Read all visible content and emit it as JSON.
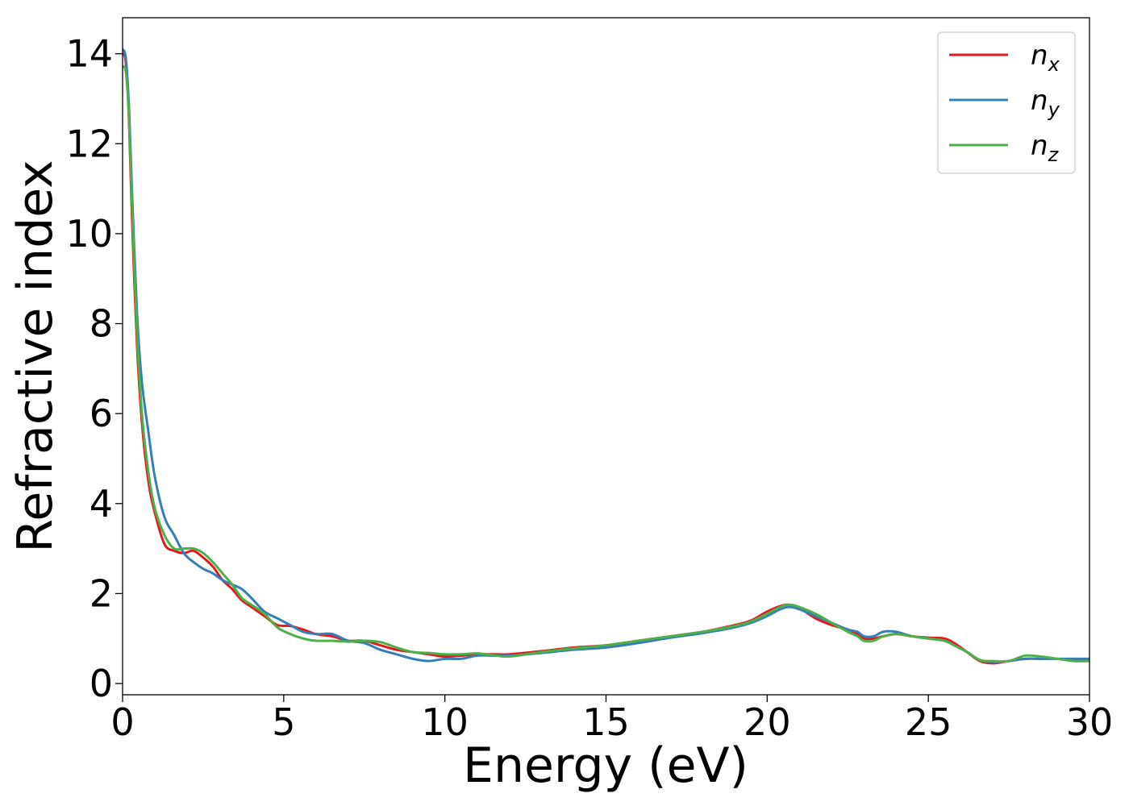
{
  "chart_data": {
    "type": "line",
    "title": "",
    "xlabel": "Energy (eV)",
    "ylabel": "Refractive index",
    "xlim": [
      0,
      30
    ],
    "ylim": [
      -0.25,
      14.8
    ],
    "xticks": [
      0,
      5,
      10,
      15,
      20,
      25,
      30
    ],
    "yticks": [
      0,
      2,
      4,
      6,
      8,
      10,
      12,
      14
    ],
    "grid": false,
    "legend_position": "top-right",
    "series": [
      {
        "name": "n",
        "subscript": "x",
        "color": "#e41a1c",
        "x": [
          0,
          0.1,
          0.2,
          0.3,
          0.45,
          0.6,
          0.8,
          1.0,
          1.3,
          1.6,
          1.9,
          2.2,
          2.5,
          2.8,
          3.1,
          3.4,
          3.7,
          4.0,
          4.4,
          4.8,
          5.2,
          5.6,
          6.0,
          6.5,
          7.0,
          7.5,
          8.0,
          8.5,
          9.0,
          9.5,
          10.0,
          10.5,
          11.0,
          11.5,
          12.0,
          13.0,
          14.0,
          15.0,
          16.0,
          17.0,
          18.0,
          19.0,
          19.5,
          20.0,
          20.4,
          20.7,
          21.0,
          21.5,
          22.0,
          22.5,
          22.8,
          23.0,
          23.3,
          23.6,
          24.0,
          24.5,
          25.0,
          25.5,
          25.8,
          26.2,
          26.6,
          27.0,
          27.5,
          28.0,
          28.5,
          29.0,
          29.5,
          30.0
        ],
        "y": [
          14.0,
          13.8,
          12.5,
          10.2,
          7.5,
          5.8,
          4.5,
          3.8,
          3.1,
          2.95,
          2.9,
          2.95,
          2.8,
          2.6,
          2.3,
          2.1,
          1.85,
          1.7,
          1.5,
          1.3,
          1.28,
          1.2,
          1.1,
          1.05,
          0.95,
          0.95,
          0.85,
          0.75,
          0.7,
          0.65,
          0.6,
          0.62,
          0.65,
          0.65,
          0.65,
          0.72,
          0.8,
          0.85,
          0.95,
          1.05,
          1.15,
          1.3,
          1.4,
          1.6,
          1.72,
          1.75,
          1.68,
          1.45,
          1.3,
          1.2,
          1.1,
          1.0,
          1.0,
          1.05,
          1.1,
          1.05,
          1.02,
          1.0,
          0.9,
          0.7,
          0.5,
          0.45,
          0.5,
          0.55,
          0.55,
          0.55,
          0.52,
          0.5
        ]
      },
      {
        "name": "n",
        "subscript": "y",
        "color": "#377eb8",
        "x": [
          0,
          0.1,
          0.2,
          0.3,
          0.45,
          0.6,
          0.8,
          1.0,
          1.3,
          1.6,
          1.9,
          2.2,
          2.5,
          2.8,
          3.1,
          3.4,
          3.7,
          4.0,
          4.4,
          4.8,
          5.2,
          5.6,
          6.0,
          6.5,
          7.0,
          7.5,
          8.0,
          8.5,
          9.0,
          9.5,
          10.0,
          10.5,
          11.0,
          11.5,
          12.0,
          13.0,
          14.0,
          15.0,
          16.0,
          17.0,
          18.0,
          19.0,
          19.5,
          20.0,
          20.4,
          20.7,
          21.0,
          21.5,
          22.0,
          22.5,
          22.8,
          23.0,
          23.3,
          23.6,
          24.0,
          24.5,
          25.0,
          25.5,
          25.8,
          26.2,
          26.6,
          27.0,
          27.5,
          28.0,
          28.5,
          29.0,
          29.5,
          30.0
        ],
        "y": [
          14.1,
          13.9,
          12.8,
          10.8,
          8.2,
          6.7,
          5.6,
          4.6,
          3.7,
          3.3,
          2.9,
          2.7,
          2.55,
          2.45,
          2.3,
          2.2,
          2.1,
          1.9,
          1.6,
          1.45,
          1.3,
          1.15,
          1.1,
          1.1,
          0.95,
          0.9,
          0.75,
          0.65,
          0.55,
          0.5,
          0.55,
          0.55,
          0.62,
          0.62,
          0.62,
          0.68,
          0.75,
          0.8,
          0.9,
          1.02,
          1.12,
          1.25,
          1.35,
          1.5,
          1.65,
          1.7,
          1.65,
          1.5,
          1.35,
          1.2,
          1.15,
          1.05,
          1.05,
          1.15,
          1.15,
          1.05,
          1.0,
          0.95,
          0.85,
          0.7,
          0.52,
          0.48,
          0.5,
          0.55,
          0.55,
          0.55,
          0.55,
          0.55
        ]
      },
      {
        "name": "n",
        "subscript": "z",
        "color": "#4daf4a",
        "x": [
          0,
          0.1,
          0.2,
          0.3,
          0.45,
          0.6,
          0.8,
          1.0,
          1.3,
          1.6,
          1.9,
          2.2,
          2.5,
          2.8,
          3.1,
          3.4,
          3.7,
          4.0,
          4.4,
          4.8,
          5.2,
          5.6,
          6.0,
          6.5,
          7.0,
          7.5,
          8.0,
          8.5,
          9.0,
          9.5,
          10.0,
          10.5,
          11.0,
          11.5,
          12.0,
          13.0,
          14.0,
          15.0,
          16.0,
          17.0,
          18.0,
          19.0,
          19.5,
          20.0,
          20.4,
          20.7,
          21.0,
          21.5,
          22.0,
          22.5,
          22.8,
          23.0,
          23.3,
          23.6,
          24.0,
          24.5,
          25.0,
          25.5,
          25.8,
          26.2,
          26.6,
          27.0,
          27.5,
          28.0,
          28.5,
          29.0,
          29.5,
          30.0
        ],
        "y": [
          13.7,
          13.6,
          12.6,
          10.5,
          7.8,
          6.0,
          4.7,
          3.9,
          3.3,
          3.0,
          3.0,
          3.0,
          2.9,
          2.7,
          2.45,
          2.2,
          1.9,
          1.75,
          1.55,
          1.25,
          1.1,
          1.0,
          0.95,
          0.95,
          0.93,
          0.95,
          0.92,
          0.8,
          0.7,
          0.68,
          0.65,
          0.65,
          0.67,
          0.63,
          0.6,
          0.7,
          0.78,
          0.85,
          0.95,
          1.05,
          1.15,
          1.28,
          1.38,
          1.55,
          1.7,
          1.75,
          1.7,
          1.55,
          1.35,
          1.15,
          1.05,
          0.95,
          0.95,
          1.05,
          1.1,
          1.05,
          1.0,
          0.95,
          0.85,
          0.7,
          0.52,
          0.5,
          0.5,
          0.62,
          0.6,
          0.55,
          0.5,
          0.5
        ]
      }
    ]
  }
}
